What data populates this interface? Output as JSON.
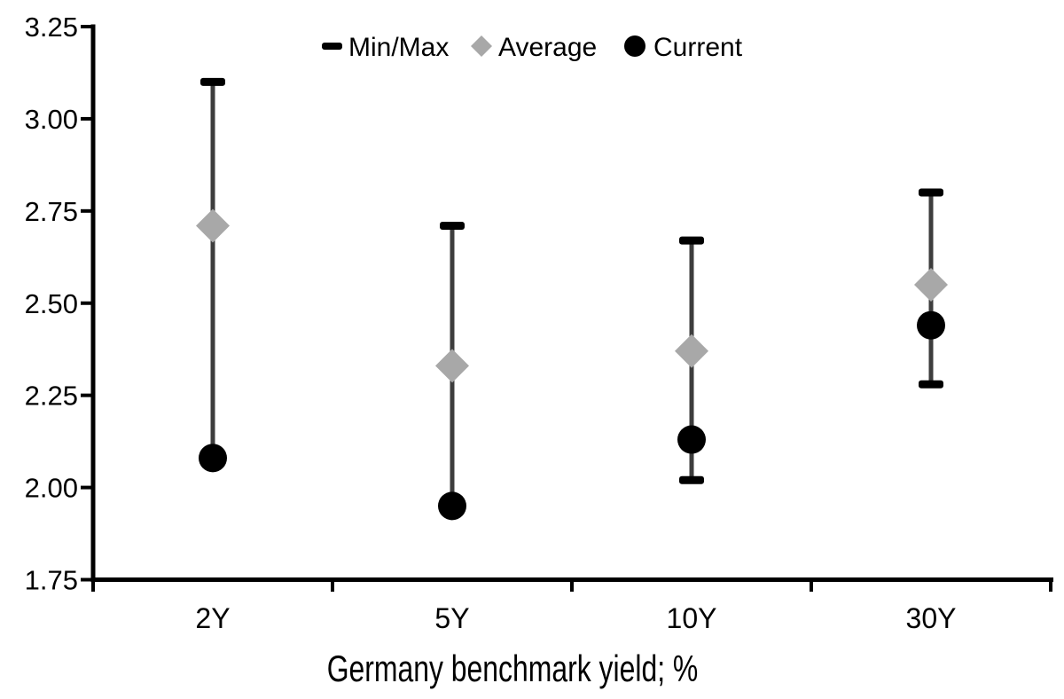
{
  "chart_data": {
    "type": "scatter",
    "subtype": "min-max-range-with-average-and-current-markers",
    "title": "",
    "xlabel": "Germany benchmark yield; %",
    "ylabel": "",
    "categories": [
      "2Y",
      "5Y",
      "10Y",
      "30Y"
    ],
    "series": [
      {
        "name": "Min/Max",
        "role": "range",
        "min": [
          2.08,
          1.95,
          2.02,
          2.28
        ],
        "max": [
          3.1,
          2.71,
          2.67,
          2.8
        ]
      },
      {
        "name": "Average",
        "role": "diamond",
        "values": [
          2.71,
          2.33,
          2.37,
          2.55
        ]
      },
      {
        "name": "Current",
        "role": "circle",
        "values": [
          2.08,
          1.95,
          2.13,
          2.44
        ]
      }
    ],
    "ylim": [
      1.75,
      3.25
    ],
    "yticks": [
      3.25,
      3.0,
      2.75,
      2.5,
      2.25,
      2.0,
      1.75
    ],
    "ytick_labels": [
      "3.25",
      "3.00",
      "2.75",
      "2.50",
      "2.25",
      "2.00",
      "1.75"
    ],
    "grid": false,
    "legend_position": "top-center",
    "legend": [
      {
        "label": "Min/Max",
        "marker": "dash",
        "color": "#000000"
      },
      {
        "label": "Average",
        "marker": "diamond",
        "color": "#a8a8a8"
      },
      {
        "label": "Current",
        "marker": "circle",
        "color": "#000000"
      }
    ],
    "colors": {
      "whisker": "#3d3d3d",
      "cap": "#000000",
      "average": "#a8a8a8",
      "current": "#000000",
      "axis": "#000000",
      "text": "#000000",
      "background": "#ffffff"
    }
  }
}
